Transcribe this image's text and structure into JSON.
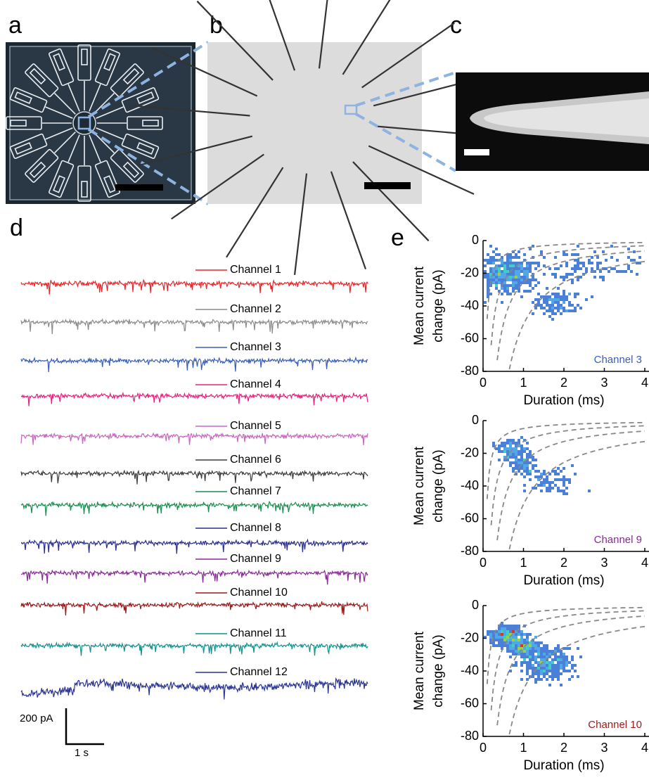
{
  "panels": {
    "a": {
      "label": "a"
    },
    "b": {
      "label": "b"
    },
    "c": {
      "label": "c"
    }
  },
  "traces": {
    "label": "d",
    "channels": [
      {
        "name": "Channel 1",
        "color": "#e8262a"
      },
      {
        "name": "Channel 2",
        "color": "#8c8c8c"
      },
      {
        "name": "Channel 3",
        "color": "#3a5fb8"
      },
      {
        "name": "Channel 4",
        "color": "#e8217f"
      },
      {
        "name": "Channel 5",
        "color": "#c768c0"
      },
      {
        "name": "Channel 6",
        "color": "#3c3c3c"
      },
      {
        "name": "Channel 7",
        "color": "#1a8f50"
      },
      {
        "name": "Channel 8",
        "color": "#2a2e8c"
      },
      {
        "name": "Channel 9",
        "color": "#8b2a9a"
      },
      {
        "name": "Channel 10",
        "color": "#9c1a1a"
      },
      {
        "name": "Channel 11",
        "color": "#14918c"
      },
      {
        "name": "Channel 12",
        "color": "#2b3595"
      }
    ],
    "scale_bar": {
      "y_label": "200 pA",
      "x_label": "1 s"
    }
  },
  "histograms": {
    "label": "e",
    "plots": [
      {
        "channel": "Channel 3",
        "channel_color": "#3a5fb8",
        "xlabel": "Duration (ms)",
        "ylabel": [
          "Mean current",
          "change (pA)"
        ],
        "xlim": [
          0,
          4
        ],
        "xticks": [
          0,
          1,
          2,
          3,
          4
        ],
        "ylim": [
          -80,
          0
        ],
        "yticks": [
          0,
          -20,
          -40,
          -60,
          -80
        ]
      },
      {
        "channel": "Channel 9",
        "channel_color": "#8b2a9a",
        "xlabel": "Duration (ms)",
        "ylabel": [
          "Mean current",
          "change (pA)"
        ],
        "xlim": [
          0,
          4
        ],
        "xticks": [
          0,
          1,
          2,
          3,
          4
        ],
        "ylim": [
          -80,
          0
        ],
        "yticks": [
          0,
          -20,
          -40,
          -60,
          -80
        ]
      },
      {
        "channel": "Channel 10",
        "channel_color": "#9c1a1a",
        "xlabel": "Duration (ms)",
        "ylabel": [
          "Mean current",
          "change (pA)"
        ],
        "xlim": [
          0,
          4
        ],
        "xticks": [
          0,
          1,
          2,
          3,
          4
        ],
        "ylim": [
          -80,
          0
        ],
        "yticks": [
          0,
          -20,
          -40,
          -60,
          -80
        ]
      }
    ]
  }
}
